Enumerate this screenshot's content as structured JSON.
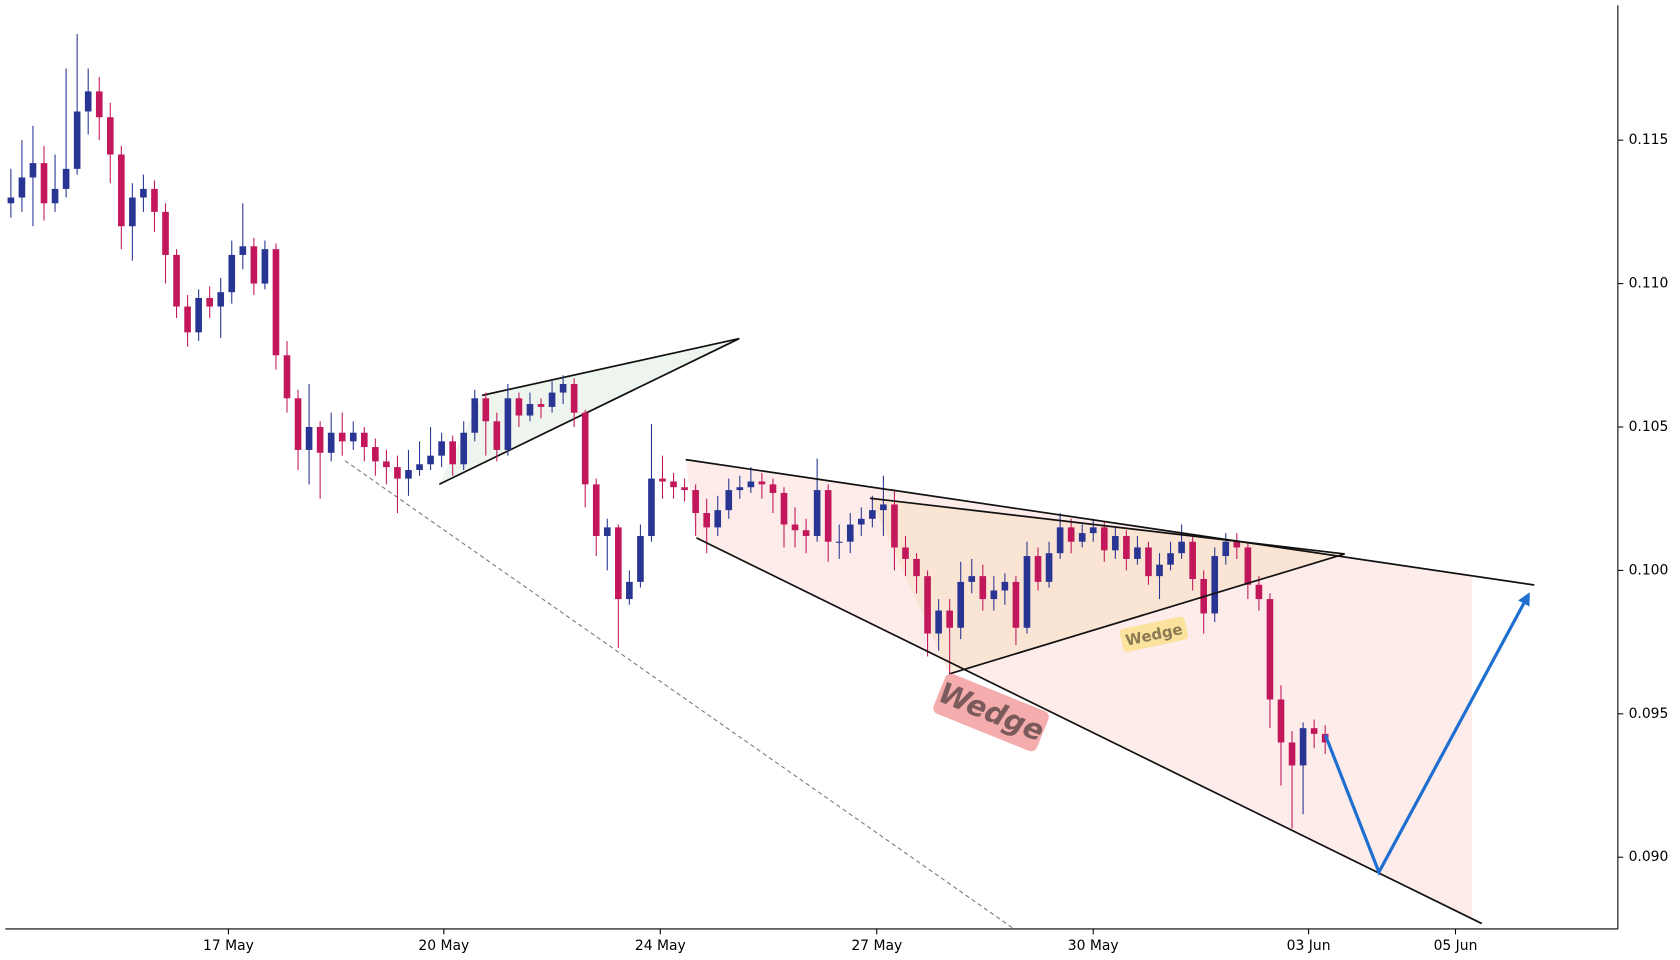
{
  "chart_data": {
    "type": "candlestick",
    "up_color": "#283593",
    "down_color": "#c2185b",
    "open": [
      0.1128,
      0.113,
      0.1137,
      0.1142,
      0.1128,
      0.1133,
      0.114,
      0.116,
      0.1167,
      0.1158,
      0.1145,
      0.112,
      0.113,
      0.1133,
      0.1125,
      0.111,
      0.1092,
      0.1083,
      0.1095,
      0.1092,
      0.1097,
      0.111,
      0.1113,
      0.11,
      0.1112,
      0.1075,
      0.106,
      0.1042,
      0.105,
      0.1041,
      0.1048,
      0.1045,
      0.1048,
      0.1043,
      0.1038,
      0.1036,
      0.1032,
      0.1035,
      0.1037,
      0.104,
      0.1045,
      0.1037,
      0.1048,
      0.106,
      0.1052,
      0.1042,
      0.106,
      0.1054,
      0.1058,
      0.1057,
      0.1062,
      0.1065,
      0.1055,
      0.103,
      0.1012,
      0.1015,
      0.099,
      0.0996,
      0.1012,
      0.1032,
      0.1031,
      0.1029,
      0.1028,
      0.102,
      0.1015,
      0.1021,
      0.1028,
      0.1029,
      0.1031,
      0.103,
      0.1027,
      0.1016,
      0.1014,
      0.1012,
      0.1028,
      0.101,
      0.101,
      0.1016,
      0.1018,
      0.1021,
      0.1023,
      0.1008,
      0.1004,
      0.0998,
      0.0978,
      0.0986,
      0.098,
      0.0996,
      0.0998,
      0.099,
      0.0993,
      0.0996,
      0.098,
      0.1005,
      0.0996,
      0.1006,
      0.1015,
      0.101,
      0.1013,
      0.1015,
      0.1007,
      0.1012,
      0.1004,
      0.1008,
      0.0998,
      0.1002,
      0.1006,
      0.101,
      0.0997,
      0.0985,
      0.1005,
      0.101,
      0.1008,
      0.0995,
      0.099,
      0.0955,
      0.094,
      0.0932,
      0.0945,
      0.0943
    ],
    "high": [
      0.114,
      0.115,
      0.1155,
      0.1148,
      0.1145,
      0.1175,
      0.1187,
      0.1175,
      0.1172,
      0.1163,
      0.1148,
      0.1135,
      0.1138,
      0.1136,
      0.1128,
      0.1112,
      0.1096,
      0.1098,
      0.1099,
      0.1102,
      0.1115,
      0.1128,
      0.1116,
      0.1115,
      0.1114,
      0.108,
      0.1063,
      0.1065,
      0.1052,
      0.1055,
      0.1055,
      0.1052,
      0.105,
      0.1046,
      0.1042,
      0.104,
      0.1042,
      0.1045,
      0.105,
      0.1048,
      0.1047,
      0.1052,
      0.1063,
      0.1062,
      0.1055,
      0.1065,
      0.1062,
      0.1062,
      0.106,
      0.1066,
      0.1068,
      0.1067,
      0.1056,
      0.1032,
      0.1018,
      0.1016,
      0.1,
      0.1016,
      0.1051,
      0.104,
      0.1034,
      0.1032,
      0.103,
      0.1025,
      0.1026,
      0.1032,
      0.1033,
      0.1036,
      0.1034,
      0.1032,
      0.1029,
      0.1022,
      0.1018,
      0.1039,
      0.103,
      0.1016,
      0.102,
      0.1022,
      0.1026,
      0.1033,
      0.1028,
      0.1012,
      0.1006,
      0.1,
      0.099,
      0.099,
      0.1003,
      0.1004,
      0.1002,
      0.0998,
      0.0999,
      0.0998,
      0.101,
      0.1008,
      0.101,
      0.102,
      0.1018,
      0.1016,
      0.1018,
      0.1017,
      0.1015,
      0.1014,
      0.1012,
      0.101,
      0.1006,
      0.101,
      0.1016,
      0.1012,
      0.1,
      0.1008,
      0.1013,
      0.1013,
      0.101,
      0.0998,
      0.0992,
      0.096,
      0.0944,
      0.0947,
      0.0948,
      0.0946
    ],
    "low": [
      0.1123,
      0.1125,
      0.112,
      0.1122,
      0.1125,
      0.113,
      0.1138,
      0.1152,
      0.115,
      0.1135,
      0.1112,
      0.1108,
      0.1125,
      0.1118,
      0.11,
      0.1088,
      0.1078,
      0.108,
      0.1088,
      0.1081,
      0.1093,
      0.1105,
      0.1096,
      0.1098,
      0.107,
      0.1055,
      0.1035,
      0.103,
      0.1025,
      0.1038,
      0.104,
      0.1042,
      0.1038,
      0.1033,
      0.103,
      0.102,
      0.1026,
      0.1033,
      0.1035,
      0.1036,
      0.1033,
      0.1035,
      0.1045,
      0.104,
      0.1038,
      0.104,
      0.105,
      0.1052,
      0.1053,
      0.1055,
      0.1058,
      0.105,
      0.1022,
      0.1005,
      0.1,
      0.0973,
      0.0988,
      0.0994,
      0.101,
      0.1025,
      0.1025,
      0.1024,
      0.1012,
      0.1006,
      0.1012,
      0.1018,
      0.1025,
      0.1027,
      0.1025,
      0.102,
      0.1008,
      0.1008,
      0.1006,
      0.101,
      0.1003,
      0.1004,
      0.1006,
      0.1012,
      0.1015,
      0.1012,
      0.1,
      0.0998,
      0.0992,
      0.097,
      0.0972,
      0.0964,
      0.0976,
      0.0992,
      0.0986,
      0.0986,
      0.0988,
      0.0974,
      0.0978,
      0.0993,
      0.0994,
      0.1004,
      0.1006,
      0.1008,
      0.101,
      0.1003,
      0.1004,
      0.1,
      0.1002,
      0.0995,
      0.099,
      0.1,
      0.1004,
      0.0993,
      0.0978,
      0.0982,
      0.1002,
      0.1004,
      0.099,
      0.0986,
      0.0945,
      0.0925,
      0.091,
      0.0915,
      0.0938,
      0.0936
    ],
    "close": [
      0.113,
      0.1137,
      0.1142,
      0.1128,
      0.1133,
      0.114,
      0.116,
      0.1167,
      0.1158,
      0.1145,
      0.112,
      0.113,
      0.1133,
      0.1125,
      0.111,
      0.1092,
      0.1083,
      0.1095,
      0.1092,
      0.1097,
      0.111,
      0.1113,
      0.11,
      0.1112,
      0.1075,
      0.106,
      0.1042,
      0.105,
      0.1041,
      0.1048,
      0.1045,
      0.1048,
      0.1043,
      0.1038,
      0.1036,
      0.1032,
      0.1035,
      0.1037,
      0.104,
      0.1045,
      0.1037,
      0.1048,
      0.106,
      0.1052,
      0.1042,
      0.106,
      0.1054,
      0.1058,
      0.1057,
      0.1062,
      0.1065,
      0.1055,
      0.103,
      0.1012,
      0.1015,
      0.099,
      0.0996,
      0.1012,
      0.1032,
      0.1031,
      0.1029,
      0.1028,
      0.102,
      0.1015,
      0.1021,
      0.1028,
      0.1029,
      0.1031,
      0.103,
      0.1027,
      0.1016,
      0.1014,
      0.1012,
      0.1028,
      0.101,
      0.101,
      0.1016,
      0.1018,
      0.1021,
      0.1023,
      0.1008,
      0.1004,
      0.0998,
      0.0978,
      0.0986,
      0.098,
      0.0996,
      0.0998,
      0.099,
      0.0993,
      0.0996,
      0.098,
      0.1005,
      0.0996,
      0.1006,
      0.1015,
      0.101,
      0.1013,
      0.1015,
      0.1007,
      0.1012,
      0.1004,
      0.1008,
      0.0998,
      0.1002,
      0.1006,
      0.101,
      0.0997,
      0.0985,
      0.1005,
      0.101,
      0.1008,
      0.0995,
      0.099,
      0.0955,
      0.094,
      0.0932,
      0.0945,
      0.0943,
      0.094
    ],
    "xlim": [
      -0.5,
      145.5
    ],
    "xticks": [
      {
        "value": 19.7,
        "label": "17 May"
      },
      {
        "value": 39.2,
        "label": "20 May"
      },
      {
        "value": 58.8,
        "label": "24 May"
      },
      {
        "value": 78.4,
        "label": "27 May"
      },
      {
        "value": 98.0,
        "label": "30 May"
      },
      {
        "value": 117.5,
        "label": "03 Jun"
      },
      {
        "value": 130.8,
        "label": "05 Jun"
      }
    ],
    "ylim": [
      0.0875,
      0.1197
    ],
    "yticks": [
      {
        "value": 0.09,
        "label": "0.090"
      },
      0.095,
      {
        "value": 0.1,
        "label": "0.100"
      },
      0.105,
      {
        "value": 0.11,
        "label": "0.110"
      },
      0.115
    ],
    "annotations": [
      "Wedge",
      "Wedge"
    ]
  }
}
